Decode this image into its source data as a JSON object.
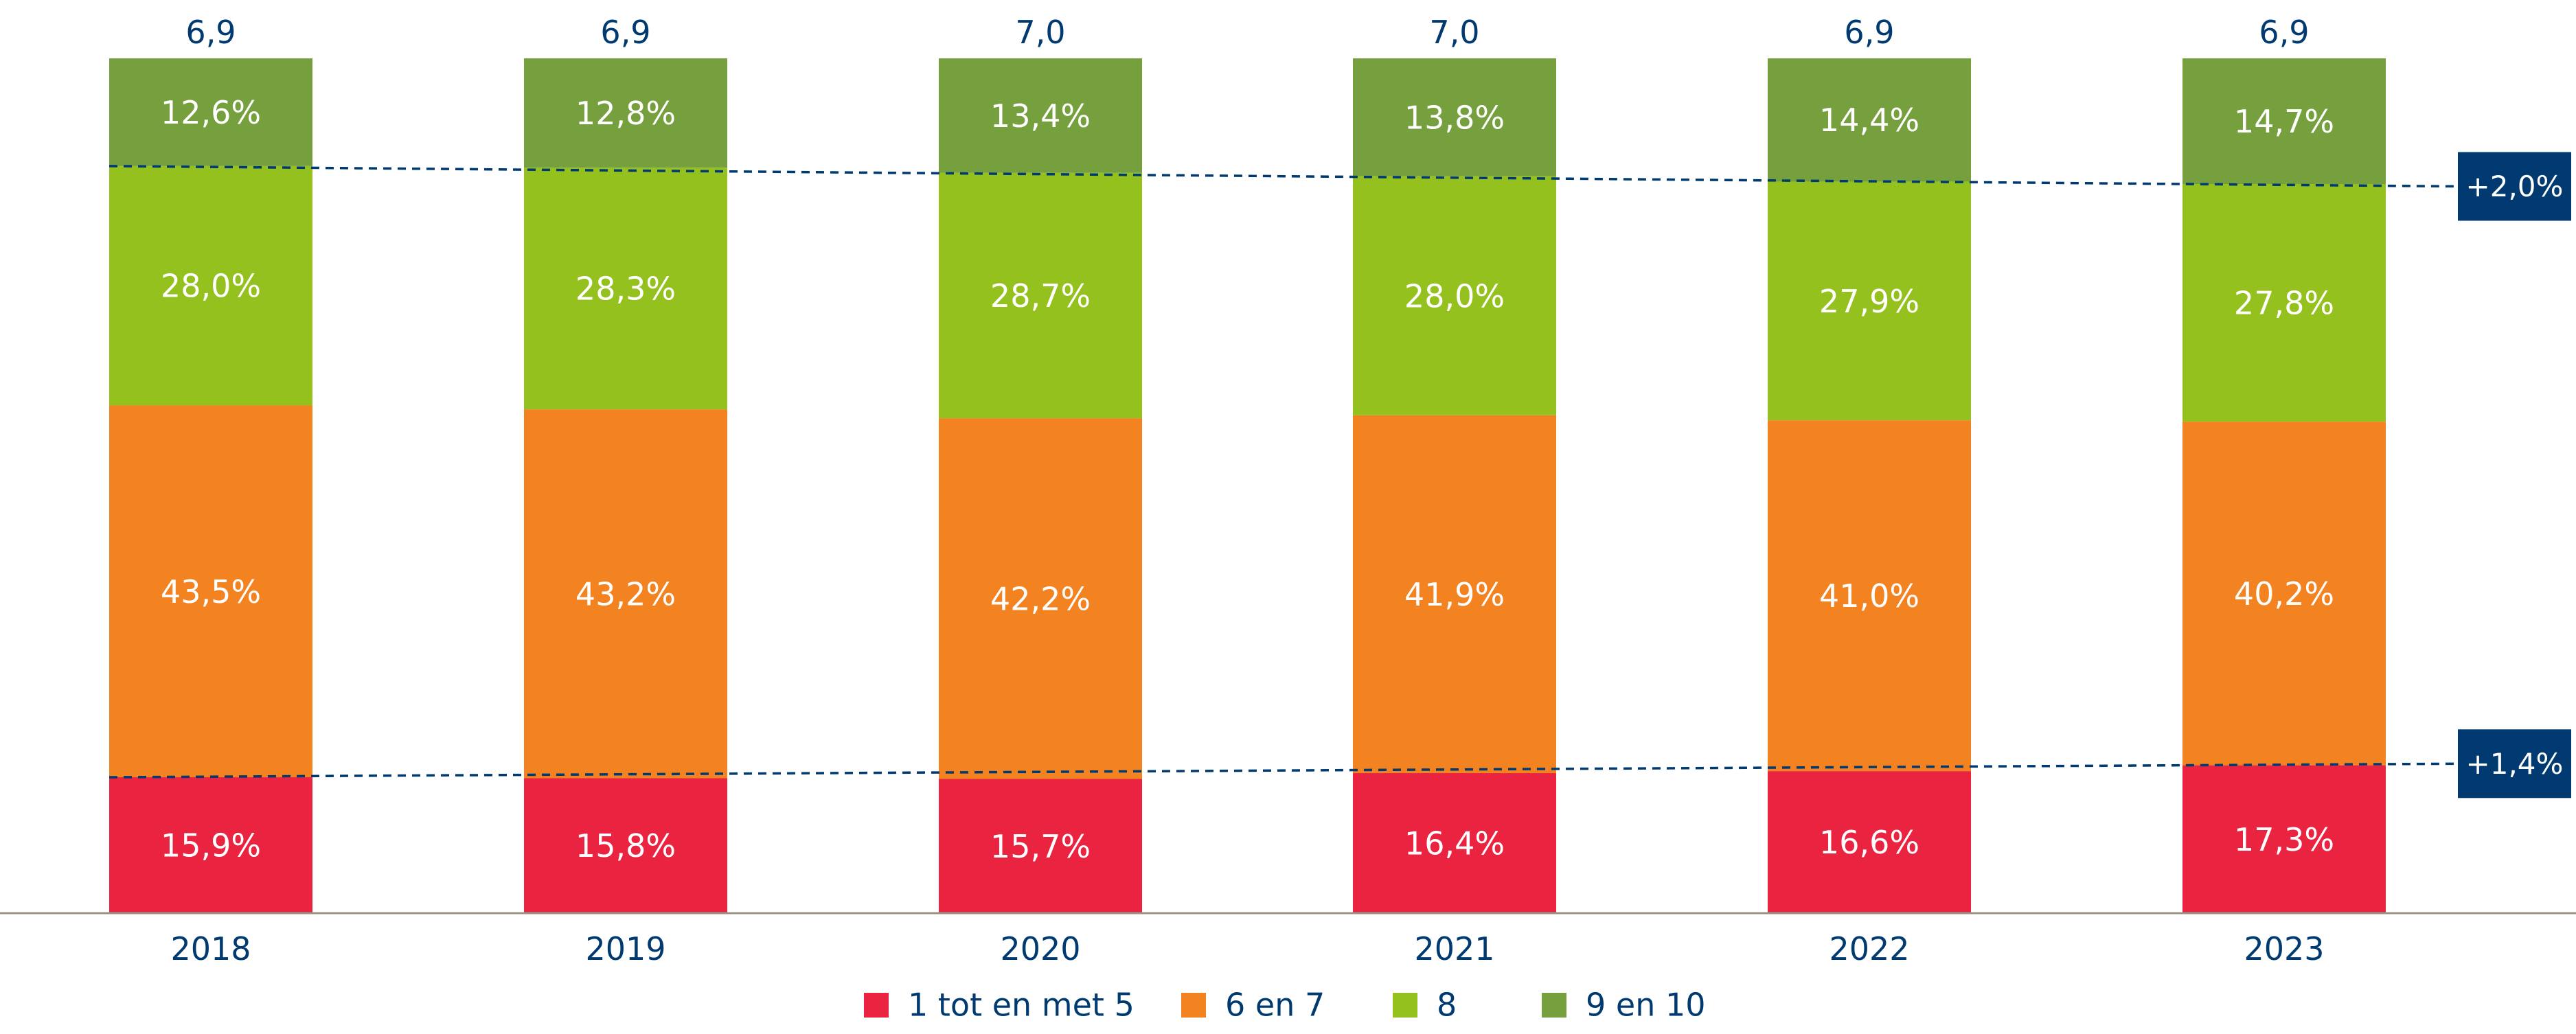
{
  "chart_data": {
    "type": "bar",
    "stacked": true,
    "categories": [
      "2018",
      "2019",
      "2020",
      "2021",
      "2022",
      "2023"
    ],
    "series": [
      {
        "name": "1 tot en met 5",
        "color": "#e92340",
        "values": [
          15.9,
          15.8,
          15.7,
          16.4,
          16.6,
          17.3
        ],
        "labels": [
          "15,9%",
          "15,8%",
          "15,7%",
          "16,4%",
          "16,6%",
          "17,3%"
        ]
      },
      {
        "name": "6 en 7",
        "color": "#f38220",
        "values": [
          43.5,
          43.2,
          42.2,
          41.9,
          41.0,
          40.2
        ],
        "labels": [
          "43,5%",
          "43,2%",
          "42,2%",
          "41,9%",
          "41,0%",
          "40,2%"
        ]
      },
      {
        "name": "8",
        "color": "#95c11f",
        "values": [
          28.0,
          28.3,
          28.7,
          28.0,
          27.9,
          27.8
        ],
        "labels": [
          "28,0%",
          "28,3%",
          "28,7%",
          "28,0%",
          "27,9%",
          "27,8%"
        ]
      },
      {
        "name": "9 en 10",
        "color": "#76a03e",
        "values": [
          12.6,
          12.8,
          13.4,
          13.8,
          14.4,
          14.7
        ],
        "labels": [
          "12,6%",
          "12,8%",
          "13,4%",
          "13,8%",
          "14,4%",
          "14,7%"
        ]
      }
    ],
    "averages": [
      "6,9",
      "6,9",
      "7,0",
      "7,0",
      "6,9",
      "6,9"
    ],
    "ylim": [
      0,
      100
    ],
    "trend_lines": [
      {
        "label": "+2,0%",
        "series_boundary": "8 / 9 en 10"
      },
      {
        "label": "+1,4%",
        "series_boundary": "1 tot en met 5 / 6 en 7"
      }
    ],
    "legend_position": "bottom",
    "text_color": "#003a70",
    "axis_color": "#9c9486",
    "trend_color": "#003a70"
  }
}
